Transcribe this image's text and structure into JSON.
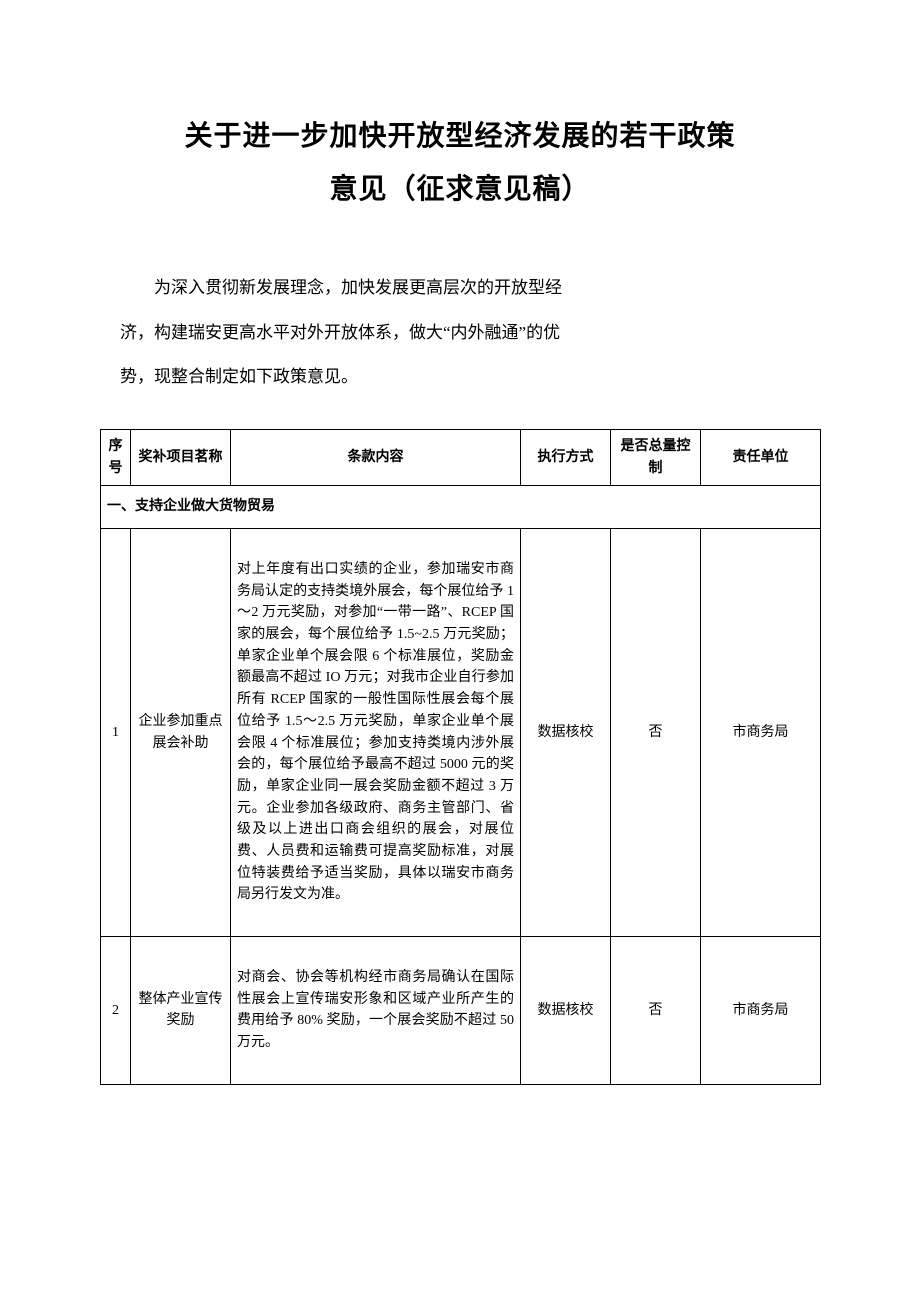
{
  "title": {
    "line1": "关于进一步加快开放型经济发展的若干政策",
    "line2": "意见（征求意见稿）"
  },
  "intro": {
    "line1": "为深入贯彻新发展理念，加快发展更高层次的开放型经",
    "line2": "济，构建瑞安更高水平对外开放体系，做大“内外融通”的优",
    "line3": "势，现整合制定如下政策意见。"
  },
  "table": {
    "headers": {
      "seq": "序号",
      "name": "奖补项目茗称",
      "content": "条款内容",
      "exec": "执行方式",
      "total": "是否总量控制",
      "resp": "责任单位"
    },
    "section1": "一、支持企业做大货物贸易",
    "row1": {
      "seq": "1",
      "name": "企业参加重点展会补助",
      "content": "对上年度有出口实绩的企业，参加瑞安市商务局认定的支持类境外展会，每个展位给予 1～2 万元奖励，对参加“一带一路”、RCEP 国家的展会，每个展位给予 1.5~2.5 万元奖励；单家企业单个展会限 6 个标准展位，奖励金额最高不超过 IO 万元；对我市企业自行参加所有 RCEP 国家的一般性国际性展会每个展位给予 1.5～2.5 万元奖励，单家企业单个展会限 4 个标准展位；参加支持类境内涉外展会的，每个展位给予最高不超过 5000 元的奖励，单家企业同一展会奖励金额不超过 3 万元。企业参加各级政府、商务主管部门、省级及以上进出口商会组织的展会，对展位费、人员费和运输费可提高奖励标准，对展位特装费给予适当奖励，具体以瑞安市商务局另行发文为准。",
      "exec": "数据核校",
      "total": "否",
      "resp": "市商务局"
    },
    "row2": {
      "seq": "2",
      "name": "整体产业宣传奖励",
      "content": "对商会、协会等机构经市商务局确认在国际性展会上宣传瑞安形象和区域产业所产生的费用给予 80% 奖励，一个展会奖励不超过 50 万元。",
      "exec": "数据核校",
      "total": "否",
      "resp": "市商务局"
    }
  },
  "style": {
    "page_bg": "#ffffff",
    "text_color": "#000000",
    "border_color": "#000000",
    "title_fontsize": 28,
    "intro_fontsize": 17,
    "table_fontsize": 14
  }
}
